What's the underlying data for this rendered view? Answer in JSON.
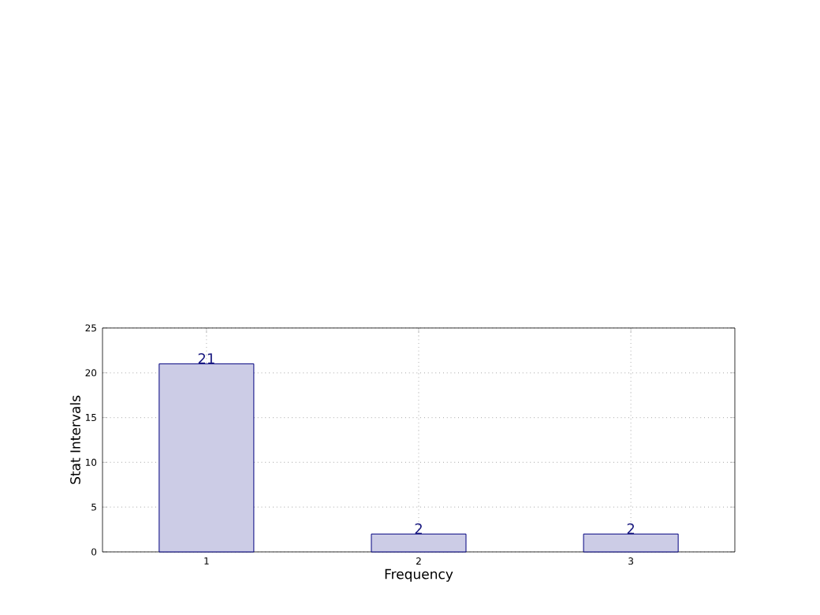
{
  "chart_data": {
    "type": "bar",
    "xlabel": "Frequency",
    "ylabel": "Stat Intervals",
    "categories": [
      "1",
      "2",
      "3"
    ],
    "values": [
      21,
      2,
      2
    ],
    "color": "#cccce6",
    "ylim": [
      0,
      25
    ],
    "yticks": [
      0,
      5,
      10,
      15,
      20,
      25
    ],
    "grid": true,
    "data_labels": true
  }
}
